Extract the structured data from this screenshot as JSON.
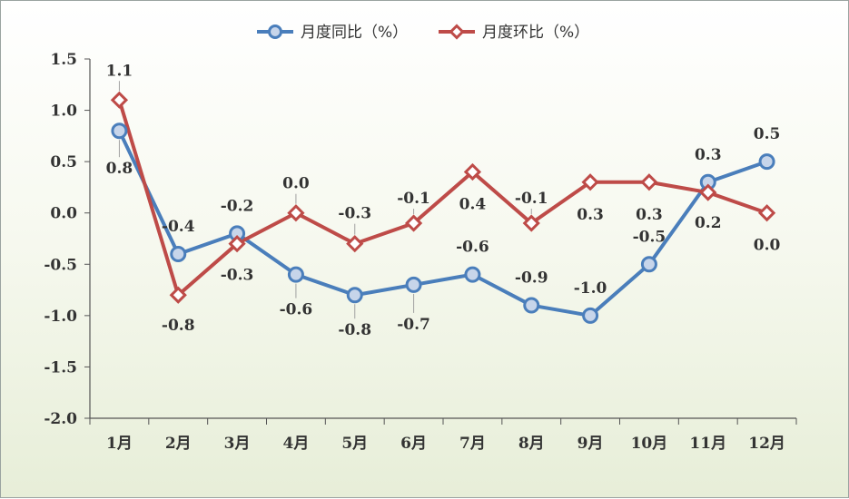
{
  "chart_data": {
    "type": "line",
    "categories": [
      "1月",
      "2月",
      "3月",
      "4月",
      "5月",
      "6月",
      "7月",
      "8月",
      "9月",
      "10月",
      "11月",
      "12月"
    ],
    "series": [
      {
        "name": "月度同比（%）",
        "values": [
          0.8,
          -0.4,
          -0.2,
          -0.6,
          -0.8,
          -0.7,
          -0.6,
          -0.9,
          -1.0,
          -0.5,
          0.3,
          0.5
        ],
        "labels": [
          "0.8",
          "-0.4",
          "-0.2",
          "-0.6",
          "-0.8",
          "-0.7",
          "-0.6",
          "-0.9",
          "-1.0",
          "-0.5",
          "0.3",
          "0.5"
        ],
        "color": "#4a7ebb",
        "marker": "circle"
      },
      {
        "name": "月度环比（%）",
        "values": [
          1.1,
          -0.8,
          -0.3,
          0.0,
          -0.3,
          -0.1,
          0.4,
          -0.1,
          0.3,
          0.3,
          0.2,
          0.0
        ],
        "labels": [
          "1.1",
          "-0.8",
          "-0.3",
          "0.0",
          "-0.3",
          "-0.1",
          "0.4",
          "-0.1",
          "0.3",
          "0.3",
          "0.2",
          "0.0"
        ],
        "color": "#be4b48",
        "marker": "diamond"
      }
    ],
    "ylim": [
      -2.0,
      1.5
    ],
    "yticks": [
      "-2.0",
      "-1.5",
      "-1.0",
      "-0.5",
      "0.0",
      "0.5",
      "1.0",
      "1.5"
    ],
    "title": "",
    "xlabel": "",
    "ylabel": "",
    "legend": "top-center",
    "grid": false
  }
}
